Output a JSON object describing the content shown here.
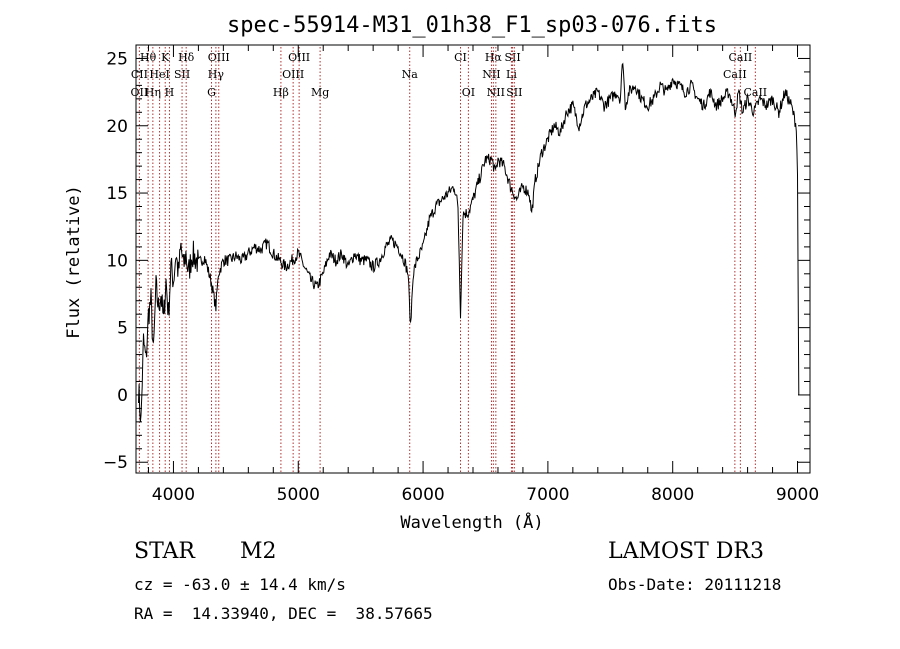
{
  "chart_data": {
    "type": "line",
    "title": "spec-55914-M31_01h38_F1_sp03-076.fits",
    "xlabel": "Wavelength (Å)",
    "ylabel": "Flux (relative)",
    "xlim": [
      3700,
      9100
    ],
    "ylim": [
      -5.8,
      26
    ],
    "x_ticks": [
      4000,
      5000,
      6000,
      7000,
      8000,
      9000
    ],
    "y_ticks": [
      -5,
      0,
      5,
      10,
      15,
      20,
      25
    ],
    "grid": false,
    "series": [
      {
        "values_note_x_y": "approximate continuum trace",
        "points": [
          [
            3720,
            0.5
          ],
          [
            3740,
            -2.0
          ],
          [
            3760,
            4.0
          ],
          [
            3780,
            2.5
          ],
          [
            3800,
            6.0
          ],
          [
            3820,
            7.0
          ],
          [
            3840,
            3.0
          ],
          [
            3860,
            8.0
          ],
          [
            3880,
            6.5
          ],
          [
            3900,
            7.5
          ],
          [
            3920,
            5.5
          ],
          [
            3940,
            8.5
          ],
          [
            3960,
            6.0
          ],
          [
            3980,
            9.5
          ],
          [
            4000,
            8.5
          ],
          [
            4020,
            10.5
          ],
          [
            4040,
            9.0
          ],
          [
            4060,
            11.0
          ],
          [
            4080,
            9.5
          ],
          [
            4100,
            10.5
          ],
          [
            4120,
            9.0
          ],
          [
            4150,
            10.5
          ],
          [
            4200,
            9.8
          ],
          [
            4250,
            10.2
          ],
          [
            4300,
            8.5
          ],
          [
            4340,
            6.5
          ],
          [
            4360,
            9.0
          ],
          [
            4400,
            10.0
          ],
          [
            4450,
            10.0
          ],
          [
            4500,
            10.3
          ],
          [
            4550,
            10.0
          ],
          [
            4600,
            10.5
          ],
          [
            4650,
            11.0
          ],
          [
            4700,
            10.8
          ],
          [
            4750,
            11.3
          ],
          [
            4800,
            10.5
          ],
          [
            4850,
            10.0
          ],
          [
            4900,
            9.5
          ],
          [
            4950,
            10.0
          ],
          [
            5000,
            10.5
          ],
          [
            5050,
            9.5
          ],
          [
            5100,
            8.5
          ],
          [
            5150,
            8.0
          ],
          [
            5200,
            9.0
          ],
          [
            5250,
            10.5
          ],
          [
            5300,
            10.0
          ],
          [
            5350,
            10.5
          ],
          [
            5400,
            9.5
          ],
          [
            5450,
            10.5
          ],
          [
            5500,
            10.0
          ],
          [
            5550,
            10.0
          ],
          [
            5600,
            9.5
          ],
          [
            5650,
            10.0
          ],
          [
            5700,
            11.0
          ],
          [
            5750,
            11.5
          ],
          [
            5800,
            11.0
          ],
          [
            5850,
            10.0
          ],
          [
            5880,
            9.0
          ],
          [
            5900,
            5.0
          ],
          [
            5920,
            9.0
          ],
          [
            5950,
            10.0
          ],
          [
            6000,
            11.0
          ],
          [
            6050,
            13.0
          ],
          [
            6100,
            14.0
          ],
          [
            6150,
            14.5
          ],
          [
            6200,
            15.0
          ],
          [
            6250,
            15.5
          ],
          [
            6280,
            14.0
          ],
          [
            6300,
            6.0
          ],
          [
            6320,
            13.5
          ],
          [
            6360,
            13.5
          ],
          [
            6380,
            14.0
          ],
          [
            6400,
            14.5
          ],
          [
            6450,
            16.0
          ],
          [
            6500,
            17.5
          ],
          [
            6550,
            17.5
          ],
          [
            6580,
            16.5
          ],
          [
            6600,
            17.5
          ],
          [
            6650,
            17.0
          ],
          [
            6700,
            15.5
          ],
          [
            6750,
            14.5
          ],
          [
            6800,
            15.5
          ],
          [
            6850,
            15.0
          ],
          [
            6870,
            13.5
          ],
          [
            6900,
            16.0
          ],
          [
            6950,
            18.0
          ],
          [
            7000,
            19.0
          ],
          [
            7050,
            20.0
          ],
          [
            7100,
            19.5
          ],
          [
            7150,
            21.0
          ],
          [
            7200,
            21.5
          ],
          [
            7250,
            20.0
          ],
          [
            7300,
            21.5
          ],
          [
            7350,
            22.0
          ],
          [
            7400,
            22.5
          ],
          [
            7450,
            21.5
          ],
          [
            7500,
            22.0
          ],
          [
            7550,
            22.5
          ],
          [
            7580,
            22.0
          ],
          [
            7600,
            25.0
          ],
          [
            7620,
            21.5
          ],
          [
            7650,
            22.5
          ],
          [
            7700,
            23.0
          ],
          [
            7750,
            22.0
          ],
          [
            7800,
            21.5
          ],
          [
            7850,
            22.0
          ],
          [
            7900,
            23.0
          ],
          [
            7950,
            22.5
          ],
          [
            8000,
            23.5
          ],
          [
            8050,
            23.0
          ],
          [
            8100,
            22.5
          ],
          [
            8150,
            23.0
          ],
          [
            8200,
            22.0
          ],
          [
            8250,
            21.5
          ],
          [
            8300,
            22.5
          ],
          [
            8350,
            21.5
          ],
          [
            8400,
            22.0
          ],
          [
            8450,
            22.5
          ],
          [
            8500,
            21.0
          ],
          [
            8530,
            22.5
          ],
          [
            8560,
            21.0
          ],
          [
            8600,
            22.0
          ],
          [
            8650,
            21.0
          ],
          [
            8700,
            22.0
          ],
          [
            8750,
            21.5
          ],
          [
            8800,
            22.0
          ],
          [
            8850,
            21.0
          ],
          [
            8900,
            22.5
          ],
          [
            8950,
            21.5
          ],
          [
            8990,
            20.0
          ],
          [
            9000,
            16.5
          ],
          [
            9010,
            0.0
          ]
        ]
      }
    ],
    "line_markers": [
      {
        "label": "Hθ",
        "x": 3797,
        "row": 0
      },
      {
        "label": "K",
        "x": 3934,
        "row": 0
      },
      {
        "label": "Hδ",
        "x": 4102,
        "row": 0
      },
      {
        "label": "OIII",
        "x": 4363,
        "row": 0
      },
      {
        "label": "OIII",
        "x": 5007,
        "row": 0
      },
      {
        "label": "CI",
        "x": 6300,
        "row": 0
      },
      {
        "label": "Hα",
        "x": 6563,
        "row": 0
      },
      {
        "label": "SII",
        "x": 6717,
        "row": 0
      },
      {
        "label": "CaII",
        "x": 8542,
        "row": 0
      },
      {
        "label": "CII",
        "x": 3727,
        "row": 1
      },
      {
        "label": "HeI",
        "x": 3889,
        "row": 1
      },
      {
        "label": "SII",
        "x": 4069,
        "row": 1
      },
      {
        "label": "Hγ",
        "x": 4340,
        "row": 1
      },
      {
        "label": "OIII",
        "x": 4959,
        "row": 1
      },
      {
        "label": "Na",
        "x": 5893,
        "row": 1
      },
      {
        "label": "NII",
        "x": 6548,
        "row": 1
      },
      {
        "label": "Li",
        "x": 6708,
        "row": 1
      },
      {
        "label": "CaII",
        "x": 8498,
        "row": 1
      },
      {
        "label": "OII",
        "x": 3727,
        "row": 2
      },
      {
        "label": "Hη",
        "x": 3835,
        "row": 2
      },
      {
        "label": "H",
        "x": 3968,
        "row": 2
      },
      {
        "label": "G",
        "x": 4305,
        "row": 2
      },
      {
        "label": "Hβ",
        "x": 4861,
        "row": 2
      },
      {
        "label": "Mg",
        "x": 5175,
        "row": 2
      },
      {
        "label": "OI",
        "x": 6363,
        "row": 2
      },
      {
        "label": "NII",
        "x": 6583,
        "row": 2
      },
      {
        "label": "SII",
        "x": 6731,
        "row": 2
      },
      {
        "label": "CaII",
        "x": 8662,
        "row": 2
      }
    ]
  },
  "info": {
    "class_label": "STAR",
    "subclass": "M2",
    "survey": "LAMOST DR3",
    "cz": "cz = -63.0 ± 14.4 km/s",
    "obs_date": "Obs-Date: 20111218",
    "coords": "RA =  14.33940, DEC =  38.57665"
  },
  "colors": {
    "marker_line": "#b03030",
    "axis": "#000000",
    "trace": "#000000"
  }
}
